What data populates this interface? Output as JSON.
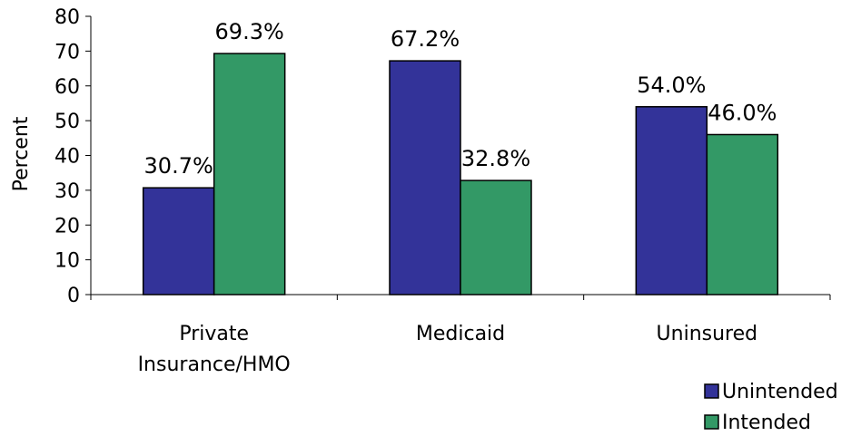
{
  "chart_data": {
    "type": "bar",
    "title": "",
    "xlabel": "",
    "ylabel": "Percent",
    "ylim": [
      0,
      80
    ],
    "yticks": [
      0,
      10,
      20,
      30,
      40,
      50,
      60,
      70,
      80
    ],
    "categories": [
      [
        "Private",
        "Insurance/HMO"
      ],
      [
        "Medicaid"
      ],
      [
        "Uninsured"
      ]
    ],
    "series": [
      {
        "name": "Unintended",
        "color": "#333399",
        "values": [
          30.7,
          67.2,
          54.0
        ],
        "labels": [
          "30.7%",
          "67.2%",
          "54.0%"
        ]
      },
      {
        "name": "Intended",
        "color": "#339966",
        "values": [
          69.3,
          32.8,
          46.0
        ],
        "labels": [
          "69.3%",
          "32.8%",
          "46.0%"
        ]
      }
    ],
    "grid": false,
    "legend_position": "bottom-right"
  }
}
